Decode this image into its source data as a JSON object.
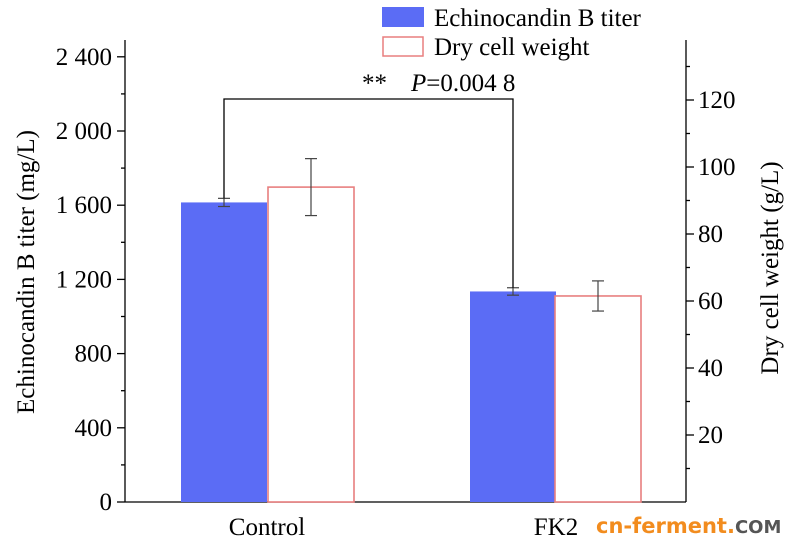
{
  "chart_data": {
    "type": "bar",
    "categories": [
      "Control",
      "FK2"
    ],
    "series": [
      {
        "name": "Echinocandin B titer",
        "axis": "left",
        "style": "filled",
        "color": "#5b6cf5",
        "values": [
          1615,
          1135
        ],
        "errors": [
          22,
          20
        ]
      },
      {
        "name": "Dry cell weight",
        "axis": "right",
        "style": "outline",
        "color": "#e87f7f",
        "values": [
          94,
          61.5
        ],
        "errors": [
          8.5,
          4.5
        ]
      }
    ],
    "left_axis": {
      "label": "Echinocandin B titer (mg/L)",
      "range": [
        0,
        2400
      ],
      "ticks": [
        0,
        400,
        800,
        1200,
        1600,
        2000,
        2400
      ],
      "tick_labels": [
        "0",
        "400",
        "800",
        "1 200",
        "1 600",
        "2 000",
        "2 400"
      ]
    },
    "right_axis": {
      "label": "Dry cell weight (g/L)",
      "range": [
        0,
        140
      ],
      "ticks": [
        20,
        40,
        60,
        80,
        100,
        120
      ],
      "tick_labels": [
        "20",
        "40",
        "60",
        "80",
        "100",
        "120"
      ]
    },
    "annotation": {
      "stars": "**",
      "p_prefix": "P",
      "p_value": "=0.004 8",
      "from_category": "Control",
      "to_category": "FK2"
    },
    "legend_position": "top-right",
    "grid": false
  },
  "watermark": {
    "text_main": "cn-ferment",
    "text_dot": ".",
    "text_tld": "COM",
    "color_main": "#f28c1e",
    "color_tld": "#555555"
  }
}
